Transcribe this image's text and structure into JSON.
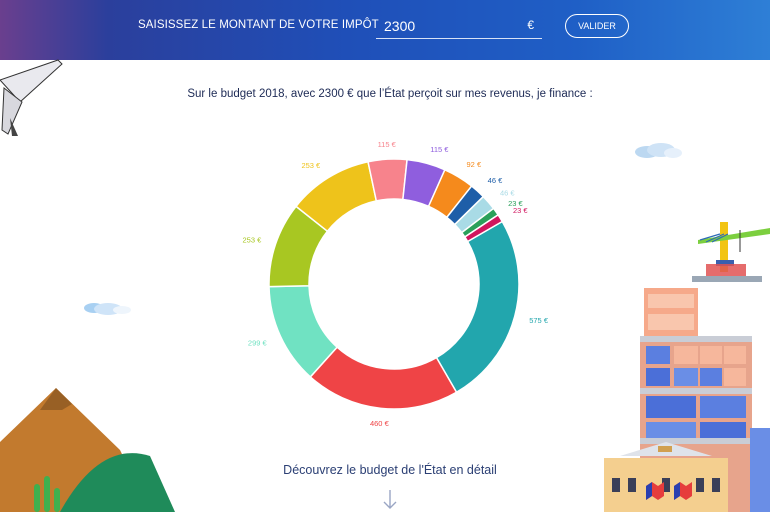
{
  "header": {
    "prompt_label": "SAISISSEZ LE MONTANT DE VOTRE IMPÔT",
    "amount_value": "2300",
    "currency": "€",
    "validate_label": "VALIDER"
  },
  "intro_text": "Sur le budget 2018, avec 2300 € que l’État perçoit sur mes revenus, je finance :",
  "detail_link": "Découvrez le budget de l'État en détail",
  "chart_data": {
    "type": "pie",
    "donut": true,
    "total": 2300,
    "values": [
      575,
      460,
      299,
      253,
      253,
      115,
      115,
      92,
      46,
      46,
      23,
      23
    ],
    "labels": [
      "575 €",
      "460 €",
      "299 €",
      "253 €",
      "253 €",
      "115 €",
      "115 €",
      "92 €",
      "46 €",
      "46 €",
      "23 €",
      "23 €"
    ],
    "colors": [
      "#22a6ad",
      "#ef4446",
      "#70e2c2",
      "#a8c722",
      "#eec31b",
      "#f7838c",
      "#8f5ede",
      "#f58a1c",
      "#1e5ea8",
      "#a9dbe6",
      "#2aa05a",
      "#d0155e"
    ]
  },
  "icons": {
    "airplane": "airplane-icon",
    "cloud": "cloud-icon",
    "crane": "construction-crane-icon",
    "building": "building-icon",
    "mountain": "mountain-icon",
    "down_arrow": "arrow-down-icon"
  }
}
